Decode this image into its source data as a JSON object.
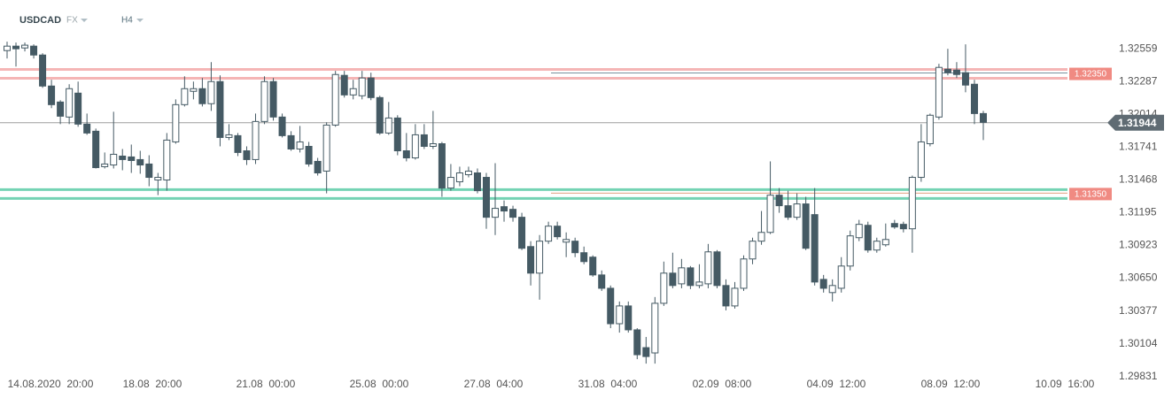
{
  "chart_data": {
    "type": "candlestick",
    "title": "USDCAD",
    "market": "FX",
    "timeframe": "H4",
    "x_labels": [
      "14.08.2020  20:00",
      "18.08  20:00",
      "21.08  00:00",
      "25.08  00:00",
      "27.08  04:00",
      "31.08  04:00",
      "02.09  08:00",
      "04.09  12:00",
      "08.09  12:00",
      "10.09  16:00"
    ],
    "open": [
      1.32544,
      1.32581,
      1.32566,
      1.32581,
      1.32507,
      1.32249,
      1.32116,
      1.31991,
      1.3219,
      1.31932,
      1.31873,
      1.31578,
      1.31592,
      1.31666,
      1.31659,
      1.31637,
      1.316,
      1.31467,
      1.31467,
      1.31784,
      1.32094,
      1.32205,
      1.32227,
      1.32102,
      1.32286,
      1.31821,
      1.31836,
      1.3171,
      1.31637,
      1.31954,
      1.32286,
      1.31991,
      1.31836,
      1.31725,
      1.31747,
      1.31622,
      1.31541,
      1.31924,
      1.32338,
      1.32175,
      1.32168,
      1.32316,
      1.32153,
      1.31858,
      1.31983,
      1.3171,
      1.31651,
      1.31843,
      1.31747,
      1.31769,
      1.314,
      1.31452,
      1.31511,
      1.31526,
      1.31489,
      1.31157,
      1.31245,
      1.31223,
      1.31157,
      1.30913,
      1.30692,
      1.30958,
      1.31083,
      1.3095,
      1.30958,
      1.30862,
      1.30825,
      1.30677,
      1.30566,
      1.30271,
      1.30419,
      1.3022,
      1.30072,
      1.30028,
      1.30441,
      1.30692,
      1.30603,
      1.30736,
      1.30589,
      1.30603,
      1.30869,
      1.30589,
      1.30419,
      1.30566,
      1.3081,
      1.30958,
      1.31031,
      1.31341,
      1.31253,
      1.31157,
      1.31268,
      1.31179,
      1.3064,
      1.3053,
      1.30566,
      1.30751,
      1.30987,
      1.3109,
      1.30884,
      1.30928,
      1.31105,
      1.31098,
      1.31061,
      1.31489,
      1.31769,
      1.31991,
      1.32389,
      1.32382,
      1.3236,
      1.32264,
      1.3202
    ],
    "high": [
      1.32618,
      1.32611,
      1.32611,
      1.32596,
      1.32522,
      1.32301,
      1.32131,
      1.32264,
      1.32286,
      1.3202,
      1.31895,
      1.31696,
      1.32035,
      1.31725,
      1.31762,
      1.3171,
      1.31673,
      1.31526,
      1.31858,
      1.32138,
      1.3233,
      1.32286,
      1.32316,
      1.32448,
      1.32338,
      1.31932,
      1.31858,
      1.31747,
      1.3202,
      1.3233,
      1.32316,
      1.3202,
      1.31873,
      1.31917,
      1.31784,
      1.31651,
      1.31947,
      1.32375,
      1.32375,
      1.32301,
      1.32375,
      1.3236,
      1.32168,
      1.32116,
      1.32006,
      1.31858,
      1.31932,
      1.31932,
      1.32042,
      1.31784,
      1.316,
      1.31578,
      1.31578,
      1.31563,
      1.31526,
      1.31607,
      1.31297,
      1.31253,
      1.31194,
      1.30958,
      1.31009,
      1.3112,
      1.3112,
      1.31031,
      1.30987,
      1.30913,
      1.3084,
      1.30714,
      1.30589,
      1.30456,
      1.30456,
      1.30234,
      1.30161,
      1.30493,
      1.30788,
      1.30862,
      1.3081,
      1.30751,
      1.30766,
      1.30935,
      1.30884,
      1.3064,
      1.30618,
      1.3084,
      1.30987,
      1.31209,
      1.31622,
      1.314,
      1.31378,
      1.31356,
      1.31327,
      1.314,
      1.30677,
      1.3064,
      1.30825,
      1.31046,
      1.31135,
      1.3112,
      1.30987,
      1.31105,
      1.31135,
      1.3112,
      1.31504,
      1.31932,
      1.3202,
      1.32434,
      1.32559,
      1.32448,
      1.32596,
      1.32301,
      1.32042
    ],
    "low": [
      1.32478,
      1.32411,
      1.32537,
      1.32478,
      1.32234,
      1.32065,
      1.31932,
      1.31932,
      1.3191,
      1.31843,
      1.31563,
      1.31563,
      1.31563,
      1.31548,
      1.31526,
      1.31519,
      1.31415,
      1.31341,
      1.31378,
      1.31769,
      1.32079,
      1.32138,
      1.32079,
      1.32042,
      1.31747,
      1.31799,
      1.31666,
      1.31592,
      1.316,
      1.31932,
      1.31961,
      1.31821,
      1.3171,
      1.31696,
      1.31578,
      1.31504,
      1.31356,
      1.3191,
      1.32153,
      1.32138,
      1.32138,
      1.32131,
      1.31843,
      1.31843,
      1.31673,
      1.31622,
      1.31637,
      1.31725,
      1.31725,
      1.31327,
      1.31378,
      1.31415,
      1.31489,
      1.31356,
      1.31061,
      1.31009,
      1.3112,
      1.3112,
      1.30884,
      1.30589,
      1.30471,
      1.30935,
      1.30972,
      1.30825,
      1.30825,
      1.30766,
      1.30662,
      1.30544,
      1.30234,
      1.30197,
      1.30197,
      1.29976,
      1.29939,
      1.29939,
      1.30419,
      1.30566,
      1.30566,
      1.30559,
      1.30566,
      1.30566,
      1.30566,
      1.30382,
      1.30397,
      1.30544,
      1.30766,
      1.30928,
      1.31017,
      1.31194,
      1.31135,
      1.31135,
      1.30884,
      1.30589,
      1.3053,
      1.30456,
      1.3053,
      1.30714,
      1.30958,
      1.30862,
      1.30862,
      1.30913,
      1.31061,
      1.31031,
      1.30862,
      1.31452,
      1.31747,
      1.31969,
      1.32338,
      1.32316,
      1.32197,
      1.31932,
      1.31799
    ],
    "close": [
      1.32581,
      1.32559,
      1.32589,
      1.32507,
      1.32249,
      1.32094,
      1.31998,
      1.32227,
      1.31932,
      1.31858,
      1.3157,
      1.316,
      1.31681,
      1.31637,
      1.31629,
      1.31592,
      1.31489,
      1.31489,
      1.31799,
      1.32094,
      1.32227,
      1.32227,
      1.32102,
      1.32286,
      1.31821,
      1.31843,
      1.31696,
      1.31637,
      1.31954,
      1.32286,
      1.31991,
      1.31836,
      1.31725,
      1.31784,
      1.316,
      1.31526,
      1.31924,
      1.32345,
      1.32175,
      1.32227,
      1.32316,
      1.32153,
      1.31858,
      1.31983,
      1.3171,
      1.31651,
      1.31843,
      1.31747,
      1.31769,
      1.314,
      1.31489,
      1.31526,
      1.31541,
      1.31378,
      1.31157,
      1.31231,
      1.31209,
      1.31157,
      1.30899,
      1.30692,
      1.30958,
      1.31083,
      1.30995,
      1.30972,
      1.30862,
      1.30788,
      1.30677,
      1.30566,
      1.30271,
      1.30419,
      1.3022,
      1.30013,
      1.29998,
      1.30441,
      1.30692,
      1.30589,
      1.30736,
      1.30589,
      1.30618,
      1.30869,
      1.30589,
      1.30419,
      1.30566,
      1.3081,
      1.30958,
      1.31031,
      1.31341,
      1.31253,
      1.31157,
      1.31268,
      1.30899,
      1.30618,
      1.30566,
      1.30589,
      1.30751,
      1.31002,
      1.31098,
      1.30884,
      1.30958,
      1.30972,
      1.31076,
      1.31061,
      1.31489,
      1.31784,
      1.32006,
      1.32404,
      1.3236,
      1.32345,
      1.32257,
      1.3202,
      1.31947
    ],
    "up_color": "#ffffff",
    "down_color": "#455a64",
    "ylim": [
      1.298,
      1.32965
    ],
    "yticks": [
      1.32559,
      1.32287,
      1.32014,
      1.31741,
      1.31468,
      1.31195,
      1.30923,
      {
        "value": 1.3065,
        "label": "1.30650"
      },
      1.30377,
      1.30104,
      1.29831
    ],
    "last_price": 1.31944,
    "levels": [
      {
        "value": 1.3235,
        "label": "1.32350",
        "color": "#f5b5b5"
      },
      {
        "value": 1.3135,
        "label": "1.31350",
        "color": "#74d3b4"
      }
    ]
  }
}
